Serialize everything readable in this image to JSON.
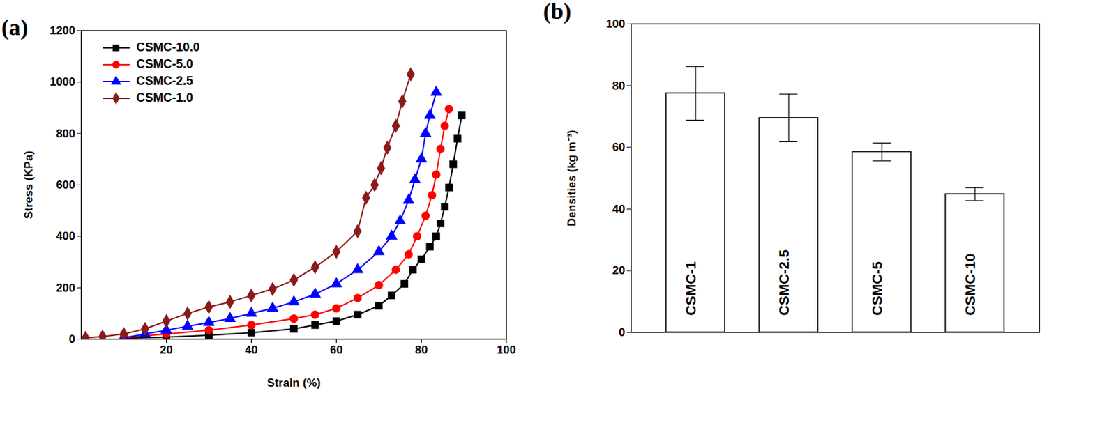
{
  "chart_data": [
    {
      "type": "line",
      "title": "(a)",
      "x_label": "Strain (%)",
      "y_label": "Stress (KPa)",
      "xlim": [
        0,
        100
      ],
      "xticks": [
        20,
        40,
        60,
        80,
        100
      ],
      "ylim": [
        0,
        1200
      ],
      "yticks": [
        0,
        200,
        400,
        600,
        800,
        1000,
        1200
      ],
      "legend": "upper left",
      "series": [
        {
          "name": "CSMC-10.0",
          "color": "#000000",
          "marker": "square",
          "x": [
            10,
            20,
            30,
            40,
            50,
            55,
            60,
            65,
            70,
            73,
            76,
            78,
            80,
            82,
            83.5,
            84.5,
            85.5,
            86.5,
            87.5,
            88.5,
            89.5
          ],
          "values": [
            3,
            8,
            15,
            25,
            40,
            55,
            70,
            95,
            130,
            170,
            215,
            270,
            310,
            360,
            400,
            450,
            515,
            590,
            680,
            780,
            870
          ]
        },
        {
          "name": "CSMC-5.0",
          "color": "#ff0000",
          "marker": "circle",
          "x": [
            10,
            20,
            30,
            40,
            50,
            55,
            60,
            65,
            70,
            74,
            77,
            79,
            81,
            82.5,
            83.5,
            84.5,
            85.5,
            86.5
          ],
          "values": [
            5,
            20,
            35,
            55,
            80,
            95,
            120,
            160,
            210,
            270,
            330,
            400,
            480,
            560,
            640,
            740,
            830,
            895
          ]
        },
        {
          "name": "CSMC-2.5",
          "color": "#0000ff",
          "marker": "triangle",
          "x": [
            10,
            15,
            20,
            25,
            30,
            35,
            40,
            45,
            50,
            55,
            60,
            65,
            70,
            73,
            75,
            77,
            78.5,
            80,
            81,
            82,
            83.5
          ],
          "values": [
            5,
            20,
            35,
            50,
            65,
            80,
            100,
            120,
            145,
            175,
            215,
            270,
            340,
            400,
            460,
            540,
            620,
            700,
            800,
            870,
            960
          ]
        },
        {
          "name": "CSMC-1.0",
          "color": "#8b1a1a",
          "marker": "diamond",
          "x": [
            1,
            5,
            10,
            15,
            20,
            25,
            30,
            35,
            40,
            45,
            50,
            55,
            60,
            65,
            67,
            69,
            70.5,
            72,
            74,
            75.5,
            77.5
          ],
          "values": [
            5,
            10,
            20,
            40,
            70,
            100,
            125,
            145,
            170,
            195,
            230,
            280,
            340,
            420,
            550,
            600,
            665,
            745,
            830,
            925,
            1030
          ]
        }
      ]
    },
    {
      "type": "bar",
      "title": "(b)",
      "y_label": "Densities (kg m⁻³)",
      "categories": [
        "CSMC-1",
        "CSMC-2.5",
        "CSMC-5",
        "CSMC-10"
      ],
      "values": [
        77.5,
        69.5,
        58.5,
        44.8
      ],
      "errors": [
        8.7,
        7.7,
        2.9,
        2.1
      ],
      "color": "#ffffff",
      "ylim": [
        0,
        100
      ],
      "yticks": [
        0,
        20,
        40,
        60,
        80,
        100
      ],
      "tick_labels": "y"
    }
  ]
}
